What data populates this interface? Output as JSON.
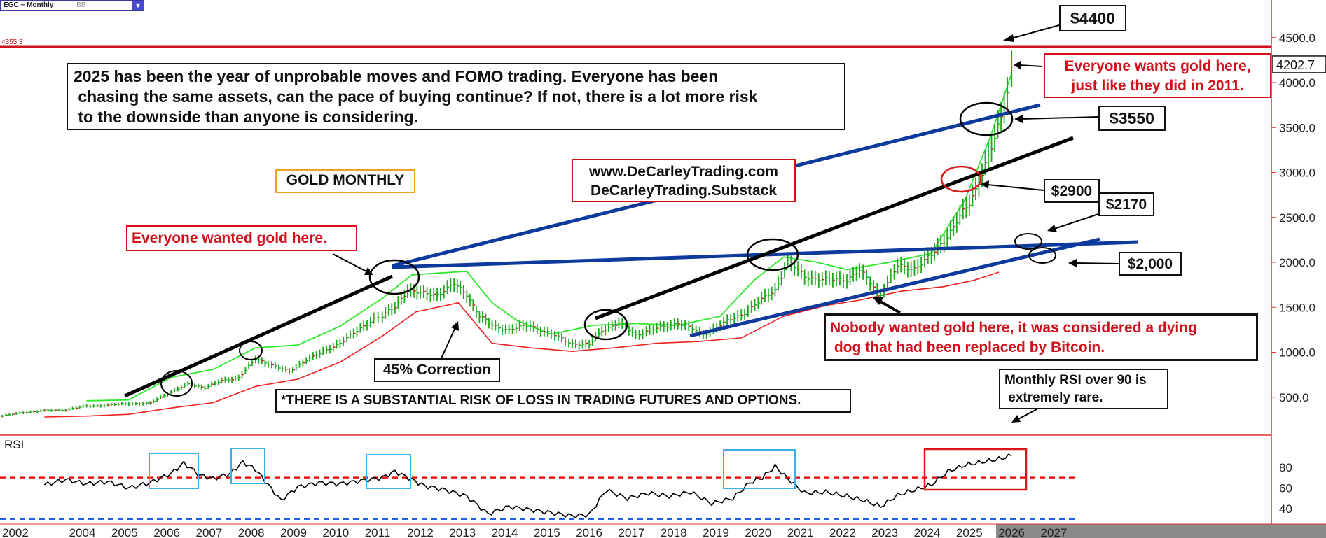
{
  "symbol": {
    "name": "EGC ~ Monthly",
    "tag": "BB"
  },
  "price_axis": {
    "labels": [
      "4500.0",
      "4000.0",
      "3500.0",
      "3000.0",
      "2500.0",
      "2000.0",
      "1500.0",
      "1000.0",
      "500.0"
    ],
    "values": [
      4500,
      4000,
      3500,
      3000,
      2500,
      2000,
      1500,
      1000,
      500
    ],
    "last_price": "4202.7",
    "high_line_label": "4355.3"
  },
  "rsi_axis": {
    "title": "RSI",
    "labels": [
      "80",
      "60",
      "40"
    ]
  },
  "x_axis": {
    "labels": [
      "2002",
      "2004",
      "2005",
      "2006",
      "2007",
      "2008",
      "2009",
      "2010",
      "2011",
      "2012",
      "2013",
      "2014",
      "2015",
      "2016",
      "2017",
      "2018",
      "2019",
      "2020",
      "2021",
      "2022",
      "2023",
      "2024",
      "2025",
      "2026",
      "2027"
    ]
  },
  "annotations": {
    "intro": "2025 has been the year of unprobable moves and FOMO trading. Everyone has been\n chasing the same assets, can the pace of buying continue? If not, there is a lot more risk\n to the downside than anyone is considering.",
    "gold_monthly": "GOLD MONTHLY",
    "website_line1": "www.DeCarleyTrading.com",
    "website_line2": "DeCarleyTrading.Substack",
    "everyone_wanted": "Everyone wanted gold here.",
    "everyone_wants_line1": "Everyone wants gold here,",
    "everyone_wants_line2": "just like they did in 2011.",
    "nobody_wanted": "Nobody wanted gold here, it was considered a dying\n dog that had been replaced by Bitcoin.",
    "correction": "45% Correction",
    "risk": "*THERE IS A SUBSTANTIAL RISK OF LOSS IN TRADING FUTURES AND OPTIONS.",
    "rsi_note": "Monthly RSI over 90 is\n extremely rare.",
    "p4400": "$4400",
    "p3550": "$3550",
    "p2900": "$2900",
    "p2170": "$2170",
    "p2000": "$2,000"
  },
  "colors": {
    "price_bars": "#1ea81e",
    "upper_band": "#2ee82e",
    "lower_band": "#ee2020",
    "resistance_line": "#d0101a",
    "trend_blue": "#0d3a9c",
    "trend_black": "#000000",
    "rsi_line": "#000000",
    "rsi_overbought": "#ee1111",
    "rsi_oversold": "#2060e0",
    "rsi_box_blue": "#3ab0ea",
    "rsi_box_red": "#d81818",
    "annotation_red": "#d0101a"
  },
  "chart_data": [
    {
      "type": "line",
      "title": "EGC ~ Monthly",
      "x_unit": "year",
      "y_scale": "linear",
      "ylim": [
        0,
        4750
      ],
      "xlim": [
        2001.7,
        2027.7
      ],
      "resistance_level": 4355.3,
      "last_price": 4202.7,
      "series": [
        {
          "name": "EGC ~ Monthly",
          "x": [
            2002.0,
            2002.5,
            2003.0,
            2003.5,
            2004.0,
            2004.5,
            2005.0,
            2005.5,
            2006.0,
            2006.4,
            2006.8,
            2007.2,
            2007.6,
            2008.0,
            2008.3,
            2008.8,
            2009.2,
            2009.6,
            2010.0,
            2010.4,
            2010.8,
            2011.0,
            2011.3,
            2011.6,
            2011.9,
            2012.3,
            2012.7,
            2013.0,
            2013.3,
            2013.6,
            2014.0,
            2014.5,
            2015.0,
            2015.5,
            2015.9,
            2016.2,
            2016.6,
            2017.0,
            2017.5,
            2018.0,
            2018.6,
            2019.0,
            2019.5,
            2019.9,
            2020.3,
            2020.6,
            2021.0,
            2021.5,
            2022.0,
            2022.3,
            2022.8,
            2023.2,
            2023.6,
            2024.0,
            2024.3,
            2024.6,
            2024.9,
            2025.2,
            2025.5,
            2025.8,
            2025.9
          ],
          "y": [
            290,
            330,
            350,
            360,
            400,
            410,
            430,
            430,
            560,
            640,
            610,
            680,
            720,
            920,
            880,
            780,
            920,
            1000,
            1110,
            1230,
            1380,
            1400,
            1500,
            1700,
            1650,
            1650,
            1750,
            1650,
            1400,
            1300,
            1250,
            1300,
            1200,
            1100,
            1080,
            1250,
            1320,
            1200,
            1260,
            1330,
            1200,
            1300,
            1420,
            1550,
            1700,
            2000,
            1850,
            1800,
            1820,
            1900,
            1650,
            1950,
            1940,
            2070,
            2250,
            2450,
            2650,
            3000,
            3350,
            3900,
            4200
          ]
        },
        {
          "name": "Upper band",
          "x": [
            2004.0,
            2005.0,
            2006.0,
            2007.0,
            2008.0,
            2009.0,
            2010.0,
            2011.0,
            2011.7,
            2012.3,
            2013.0,
            2013.6,
            2014.2,
            2015.0,
            2016.0,
            2017.0,
            2018.0,
            2019.0,
            2019.8,
            2020.5,
            2021.3,
            2022.0,
            2023.0,
            2024.0,
            2024.8,
            2025.4,
            2025.9
          ],
          "y": [
            460,
            470,
            720,
            810,
            1050,
            1080,
            1290,
            1600,
            1860,
            1880,
            1900,
            1550,
            1350,
            1200,
            1300,
            1320,
            1300,
            1400,
            1800,
            2060,
            2000,
            1920,
            2000,
            2100,
            2700,
            3400,
            4100
          ]
        },
        {
          "name": "Lower band",
          "x": [
            2003.0,
            2004.0,
            2005.0,
            2006.0,
            2007.0,
            2008.0,
            2009.0,
            2010.0,
            2011.0,
            2011.8,
            2012.8,
            2013.6,
            2014.5,
            2015.5,
            2016.5,
            2017.5,
            2018.5,
            2019.5,
            2020.5,
            2021.5,
            2022.3,
            2023.3,
            2024.3,
            2025.0,
            2025.6
          ],
          "y": [
            280,
            290,
            310,
            380,
            440,
            620,
            700,
            890,
            1180,
            1450,
            1550,
            1100,
            1050,
            1010,
            1050,
            1100,
            1120,
            1160,
            1400,
            1520,
            1580,
            1680,
            1730,
            1800,
            1890
          ]
        }
      ]
    },
    {
      "type": "line",
      "title": "RSI",
      "ylim": [
        20,
        100
      ],
      "overbought": 70,
      "oversold": 30,
      "series": [
        {
          "name": "RSI",
          "x": [
            2003.0,
            2003.5,
            2004.0,
            2004.5,
            2005.0,
            2005.5,
            2006.0,
            2006.3,
            2006.7,
            2007.0,
            2007.4,
            2007.7,
            2008.0,
            2008.3,
            2008.6,
            2009.0,
            2009.5,
            2010.0,
            2010.5,
            2011.0,
            2011.3,
            2011.7,
            2012.0,
            2012.5,
            2013.0,
            2013.5,
            2014.0,
            2014.5,
            2015.0,
            2015.5,
            2015.9,
            2016.3,
            2016.8,
            2017.3,
            2017.8,
            2018.3,
            2018.8,
            2019.3,
            2019.7,
            2020.0,
            2020.3,
            2020.6,
            2021.0,
            2021.5,
            2022.0,
            2022.4,
            2022.8,
            2023.2,
            2023.6,
            2024.0,
            2024.4,
            2024.8,
            2025.2,
            2025.6,
            2025.9
          ],
          "y": [
            63,
            68,
            64,
            66,
            60,
            65,
            74,
            84,
            72,
            69,
            74,
            85,
            78,
            63,
            48,
            61,
            65,
            64,
            67,
            70,
            76,
            68,
            62,
            58,
            52,
            35,
            42,
            39,
            36,
            33,
            34,
            58,
            50,
            55,
            52,
            56,
            45,
            50,
            65,
            70,
            81,
            69,
            55,
            56,
            52,
            48,
            42,
            53,
            58,
            63,
            76,
            82,
            85,
            88,
            91
          ]
        }
      ]
    }
  ]
}
